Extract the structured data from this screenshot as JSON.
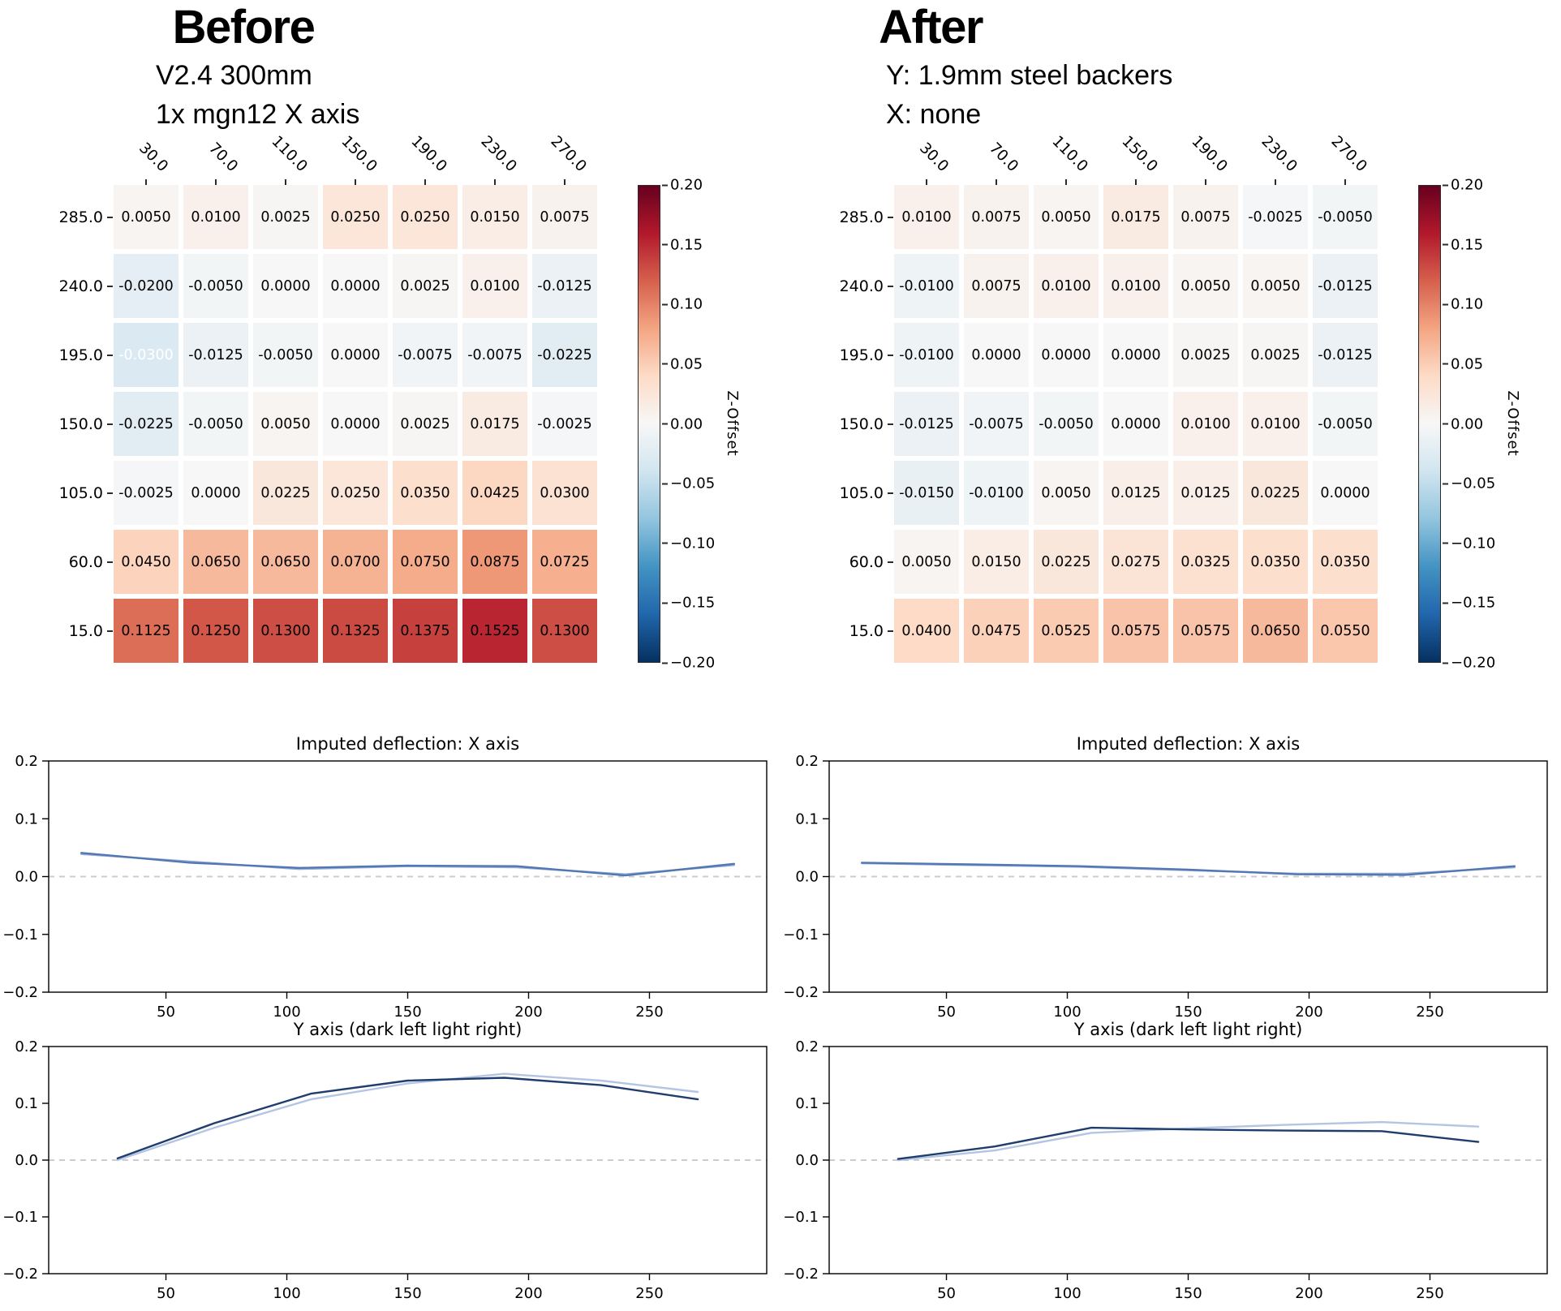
{
  "figure": {
    "background": "#ffffff"
  },
  "panels": [
    {
      "title": "Before",
      "subtitle_lines": [
        "V2.4 300mm",
        "1x mgn12 X axis"
      ]
    },
    {
      "title": "After",
      "subtitle_lines": [
        "Y: 1.9mm steel backers",
        "X: none"
      ]
    }
  ],
  "colorbar": {
    "label": "Z-Offset",
    "tick_labels": [
      "0.20",
      "0.15",
      "0.10",
      "0.05",
      "0.00",
      "−0.05",
      "−0.10",
      "−0.15",
      "−0.20"
    ],
    "gradient_stops": [
      "#67001f",
      "#b2182b",
      "#d6604d",
      "#f4a582",
      "#fddbc7",
      "#f7f7f7",
      "#d1e5f0",
      "#92c5de",
      "#4393c3",
      "#2166ac",
      "#053061"
    ]
  },
  "chart_data": [
    {
      "id": "before-heatmap",
      "type": "heatmap",
      "title": "Before",
      "colormap": "RdBu_r",
      "vmin": -0.2,
      "vmax": 0.2,
      "colorbar_label": "Z-Offset",
      "col_labels": [
        "30.0",
        "70.0",
        "110.0",
        "150.0",
        "190.0",
        "230.0",
        "270.0"
      ],
      "row_labels": [
        "285.0",
        "240.0",
        "195.0",
        "150.0",
        "105.0",
        "60.0",
        "15.0"
      ],
      "values": [
        [
          0.005,
          0.01,
          0.0025,
          0.025,
          0.025,
          0.015,
          0.0075
        ],
        [
          -0.02,
          -0.005,
          0.0,
          0.0,
          0.0025,
          0.01,
          -0.0125
        ],
        [
          -0.03,
          -0.0125,
          -0.005,
          0.0,
          -0.0075,
          -0.0075,
          -0.0225
        ],
        [
          -0.0225,
          -0.005,
          0.005,
          0.0,
          0.0025,
          0.0175,
          -0.0025
        ],
        [
          -0.0025,
          0.0,
          0.0225,
          0.025,
          0.035,
          0.0425,
          0.03
        ],
        [
          0.045,
          0.065,
          0.065,
          0.07,
          0.075,
          0.0875,
          0.0725
        ],
        [
          0.1125,
          0.125,
          0.13,
          0.1325,
          0.1375,
          0.1525,
          0.13
        ]
      ],
      "white_text_cells": [
        [
          2,
          0
        ]
      ]
    },
    {
      "id": "before-x-deflection",
      "type": "line",
      "title": "Imputed deflection: X axis",
      "x": [
        15,
        60,
        105,
        150,
        195,
        240,
        285
      ],
      "series": [
        {
          "name": "light",
          "color": "#94acd4",
          "values": [
            0.039,
            0.026,
            0.013,
            0.018,
            0.016,
            0.004,
            0.02
          ]
        },
        {
          "name": "dark",
          "color": "#5277b3",
          "values": [
            0.041,
            0.024,
            0.015,
            0.019,
            0.018,
            0.002,
            0.022
          ]
        }
      ],
      "xlim": [
        1.5,
        298.5
      ],
      "ylim": [
        -0.2,
        0.2
      ],
      "zero_line": true,
      "y_ticks": {
        "values": [
          0.2,
          0.1,
          0.0,
          -0.1,
          -0.2
        ],
        "labels": [
          "0.2",
          "0.1",
          "0.0",
          "−0.1",
          "−0.2"
        ]
      },
      "x_ticks": {
        "values": [
          50,
          100,
          150,
          200,
          250
        ],
        "labels": [
          "50",
          "100",
          "150",
          "200",
          "250"
        ]
      }
    },
    {
      "id": "before-y-deflection",
      "type": "line",
      "title": "Y axis (dark left light right)",
      "x": [
        30,
        70,
        110,
        150,
        190,
        230,
        270
      ],
      "series": [
        {
          "name": "light",
          "color": "#b3c5e2",
          "values": [
            0.0,
            0.057,
            0.107,
            0.135,
            0.152,
            0.14,
            0.12
          ]
        },
        {
          "name": "dark",
          "color": "#1f3d6d",
          "values": [
            0.003,
            0.065,
            0.117,
            0.14,
            0.145,
            0.132,
            0.107
          ]
        }
      ],
      "xlim": [
        1.5,
        298.5
      ],
      "ylim": [
        -0.2,
        0.2
      ],
      "zero_line": true,
      "y_ticks": {
        "values": [
          0.2,
          0.1,
          0.0,
          -0.1,
          -0.2
        ],
        "labels": [
          "0.2",
          "0.1",
          "0.0",
          "−0.1",
          "−0.2"
        ]
      },
      "x_ticks": {
        "values": [
          50,
          100,
          150,
          200,
          250
        ],
        "labels": [
          "50",
          "100",
          "150",
          "200",
          "250"
        ]
      }
    },
    {
      "id": "after-heatmap",
      "type": "heatmap",
      "title": "After",
      "colormap": "RdBu_r",
      "vmin": -0.2,
      "vmax": 0.2,
      "colorbar_label": "Z-Offset",
      "col_labels": [
        "30.0",
        "70.0",
        "110.0",
        "150.0",
        "190.0",
        "230.0",
        "270.0"
      ],
      "row_labels": [
        "285.0",
        "240.0",
        "195.0",
        "150.0",
        "105.0",
        "60.0",
        "15.0"
      ],
      "values": [
        [
          0.01,
          0.0075,
          0.005,
          0.0175,
          0.0075,
          -0.0025,
          -0.005
        ],
        [
          -0.01,
          0.0075,
          0.01,
          0.01,
          0.005,
          0.005,
          -0.0125
        ],
        [
          -0.01,
          0.0,
          0.0,
          0.0,
          0.0025,
          0.0025,
          -0.0125
        ],
        [
          -0.0125,
          -0.0075,
          -0.005,
          0.0,
          0.01,
          0.01,
          -0.005
        ],
        [
          -0.015,
          -0.01,
          0.005,
          0.0125,
          0.0125,
          0.0225,
          0.0
        ],
        [
          0.005,
          0.015,
          0.0225,
          0.0275,
          0.0325,
          0.035,
          0.035
        ],
        [
          0.04,
          0.0475,
          0.0525,
          0.0575,
          0.0575,
          0.065,
          0.055
        ]
      ],
      "white_text_cells": []
    },
    {
      "id": "after-x-deflection",
      "type": "line",
      "title": "Imputed deflection: X axis",
      "x": [
        15,
        60,
        105,
        150,
        195,
        240,
        285
      ],
      "series": [
        {
          "name": "light",
          "color": "#94acd4",
          "values": [
            0.023,
            0.02,
            0.017,
            0.011,
            0.005,
            0.005,
            0.016
          ]
        },
        {
          "name": "dark",
          "color": "#5277b3",
          "values": [
            0.024,
            0.021,
            0.018,
            0.012,
            0.004,
            0.003,
            0.018
          ]
        }
      ],
      "xlim": [
        1.5,
        298.5
      ],
      "ylim": [
        -0.2,
        0.2
      ],
      "zero_line": true,
      "y_ticks": {
        "values": [
          0.2,
          0.1,
          0.0,
          -0.1,
          -0.2
        ],
        "labels": [
          "0.2",
          "0.1",
          "0.0",
          "−0.1",
          "−0.2"
        ]
      },
      "x_ticks": {
        "values": [
          50,
          100,
          150,
          200,
          250
        ],
        "labels": [
          "50",
          "100",
          "150",
          "200",
          "250"
        ]
      }
    },
    {
      "id": "after-y-deflection",
      "type": "line",
      "title": "Y axis (dark left light right)",
      "x": [
        30,
        70,
        110,
        150,
        190,
        230,
        270
      ],
      "series": [
        {
          "name": "light",
          "color": "#b3c5e2",
          "values": [
            0.0,
            0.017,
            0.048,
            0.056,
            0.062,
            0.067,
            0.059
          ]
        },
        {
          "name": "dark",
          "color": "#1f3d6d",
          "values": [
            0.002,
            0.024,
            0.057,
            0.054,
            0.052,
            0.051,
            0.032
          ]
        }
      ],
      "xlim": [
        1.5,
        298.5
      ],
      "ylim": [
        -0.2,
        0.2
      ],
      "zero_line": true,
      "y_ticks": {
        "values": [
          0.2,
          0.1,
          0.0,
          -0.1,
          -0.2
        ],
        "labels": [
          "0.2",
          "0.1",
          "0.0",
          "−0.1",
          "−0.2"
        ]
      },
      "x_ticks": {
        "values": [
          50,
          100,
          150,
          200,
          250
        ],
        "labels": [
          "50",
          "100",
          "150",
          "200",
          "250"
        ]
      }
    }
  ]
}
